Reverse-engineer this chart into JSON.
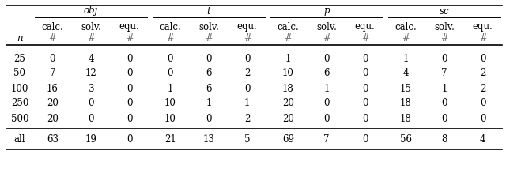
{
  "figsize": [
    6.4,
    2.38
  ],
  "dpi": 100,
  "groups": [
    "obj",
    "t",
    "p",
    "sc"
  ],
  "subheaders": [
    "calc.",
    "solv.",
    "equ."
  ],
  "n_col_label": "n",
  "hash_symbol": "#",
  "row_labels": [
    "25",
    "50",
    "100",
    "250",
    "500"
  ],
  "all_label": "all",
  "data": {
    "obj": {
      "25": [
        0,
        4,
        0
      ],
      "50": [
        7,
        12,
        0
      ],
      "100": [
        16,
        3,
        0
      ],
      "250": [
        20,
        0,
        0
      ],
      "500": [
        20,
        0,
        0
      ],
      "all": [
        63,
        19,
        0
      ]
    },
    "t": {
      "25": [
        0,
        0,
        0
      ],
      "50": [
        0,
        6,
        2
      ],
      "100": [
        1,
        6,
        0
      ],
      "250": [
        10,
        1,
        1
      ],
      "500": [
        10,
        0,
        2
      ],
      "all": [
        21,
        13,
        5
      ]
    },
    "p": {
      "25": [
        1,
        0,
        0
      ],
      "50": [
        10,
        6,
        0
      ],
      "100": [
        18,
        1,
        0
      ],
      "250": [
        20,
        0,
        0
      ],
      "500": [
        20,
        0,
        0
      ],
      "all": [
        69,
        7,
        0
      ]
    },
    "sc": {
      "25": [
        1,
        0,
        0
      ],
      "50": [
        4,
        7,
        2
      ],
      "100": [
        15,
        1,
        2
      ],
      "250": [
        18,
        0,
        0
      ],
      "500": [
        18,
        0,
        0
      ],
      "all": [
        56,
        8,
        4
      ]
    }
  },
  "font_family": "serif",
  "font_size": 8.5,
  "hash_color": "#666666",
  "line_color": "#000000",
  "thick_lw": 1.2,
  "thin_lw": 0.6
}
